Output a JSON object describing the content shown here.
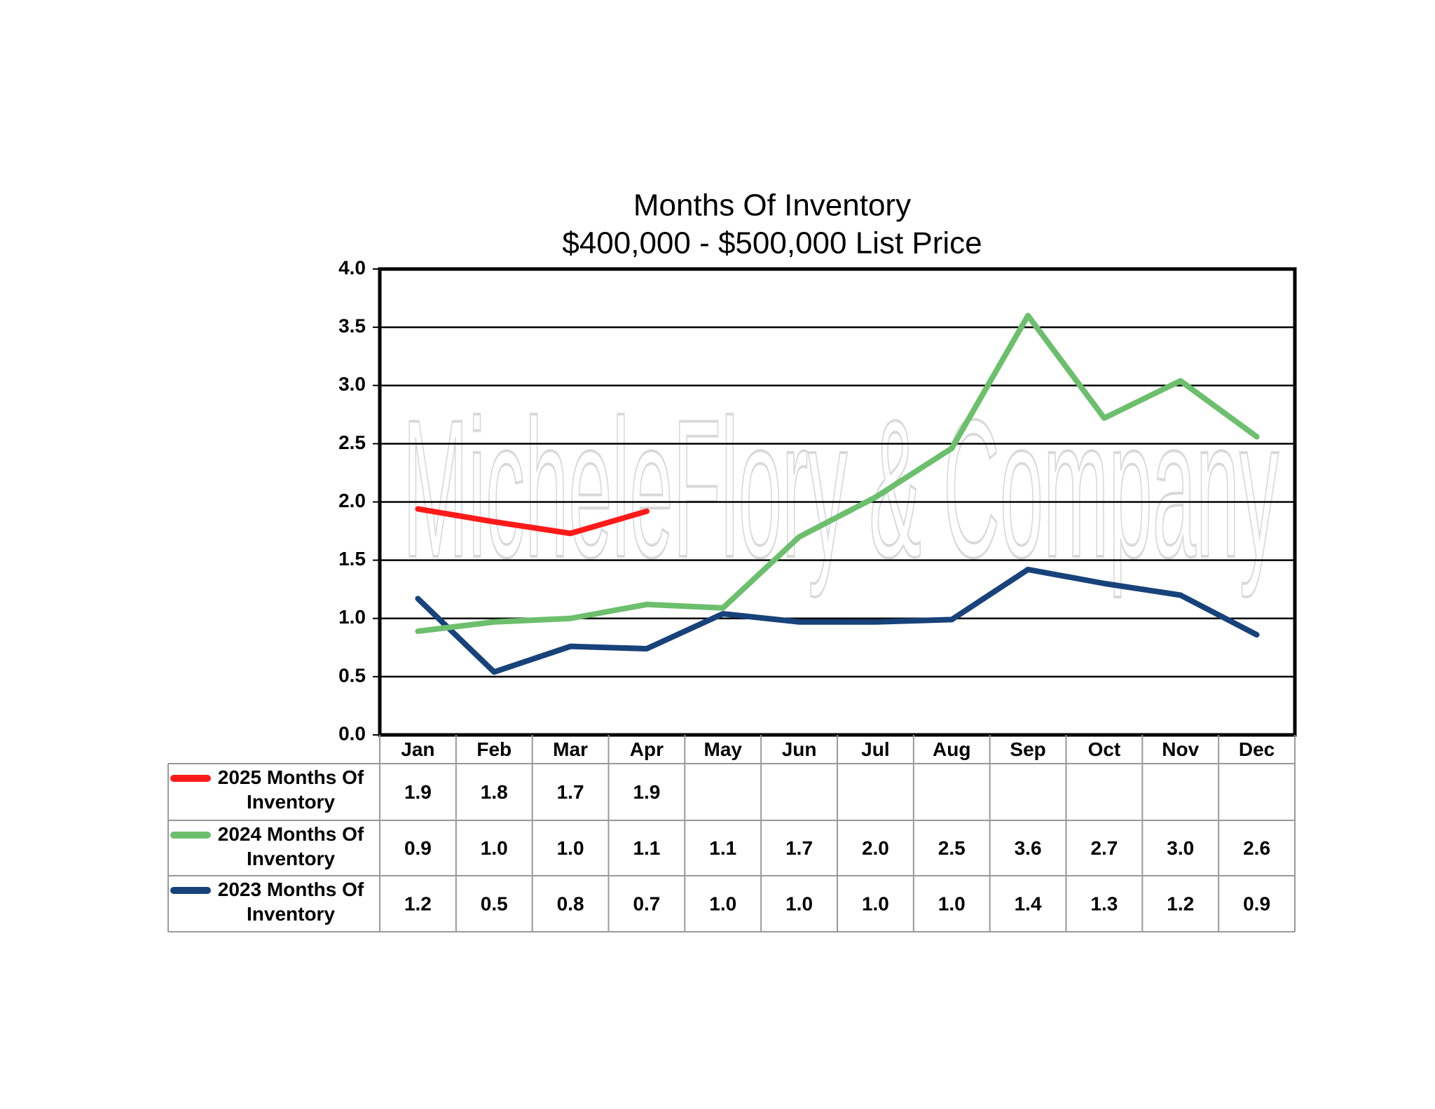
{
  "chart_data": {
    "type": "line",
    "title": "Months Of Inventory",
    "subtitle": "$400,000 - $500,000 List Price",
    "watermark": "MicheleFlory & Company",
    "categories": [
      "Jan",
      "Feb",
      "Mar",
      "Apr",
      "May",
      "Jun",
      "Jul",
      "Aug",
      "Sep",
      "Oct",
      "Nov",
      "Dec"
    ],
    "series": [
      {
        "name": "2025 Months Of Inventory",
        "color": "#ff1a1a",
        "values": [
          1.94,
          1.83,
          1.73,
          1.92,
          null,
          null,
          null,
          null,
          null,
          null,
          null,
          null
        ],
        "value_labels": [
          "1.9",
          "1.8",
          "1.7",
          "1.9",
          null,
          null,
          null,
          null,
          null,
          null,
          null,
          null
        ]
      },
      {
        "name": "2024 Months Of Inventory",
        "color": "#6cbf6c",
        "values": [
          0.89,
          0.97,
          1.0,
          1.12,
          1.09,
          1.7,
          2.04,
          2.46,
          3.6,
          2.72,
          3.04,
          2.56
        ],
        "value_labels": [
          "0.9",
          "1.0",
          "1.0",
          "1.1",
          "1.1",
          "1.7",
          "2.0",
          "2.5",
          "3.6",
          "2.7",
          "3.0",
          "2.6"
        ]
      },
      {
        "name": "2023 Months Of Inventory",
        "color": "#17427a",
        "values": [
          1.17,
          0.54,
          0.76,
          0.74,
          1.04,
          0.97,
          0.97,
          0.99,
          1.42,
          1.3,
          1.2,
          0.86
        ],
        "value_labels": [
          "1.2",
          "0.5",
          "0.8",
          "0.7",
          "1.0",
          "1.0",
          "1.0",
          "1.0",
          "1.4",
          "1.3",
          "1.2",
          "0.9"
        ]
      }
    ],
    "ylim": [
      0,
      4
    ],
    "yticks": [
      {
        "value": 0,
        "label": "0.0"
      },
      0.5,
      {
        "value": 1,
        "label": "1.0"
      },
      1.5,
      {
        "value": 2,
        "label": "2.0"
      },
      2.5,
      {
        "value": 3,
        "label": "3.0"
      },
      3.5,
      {
        "value": 4,
        "label": "4.0"
      }
    ],
    "grid": true
  }
}
